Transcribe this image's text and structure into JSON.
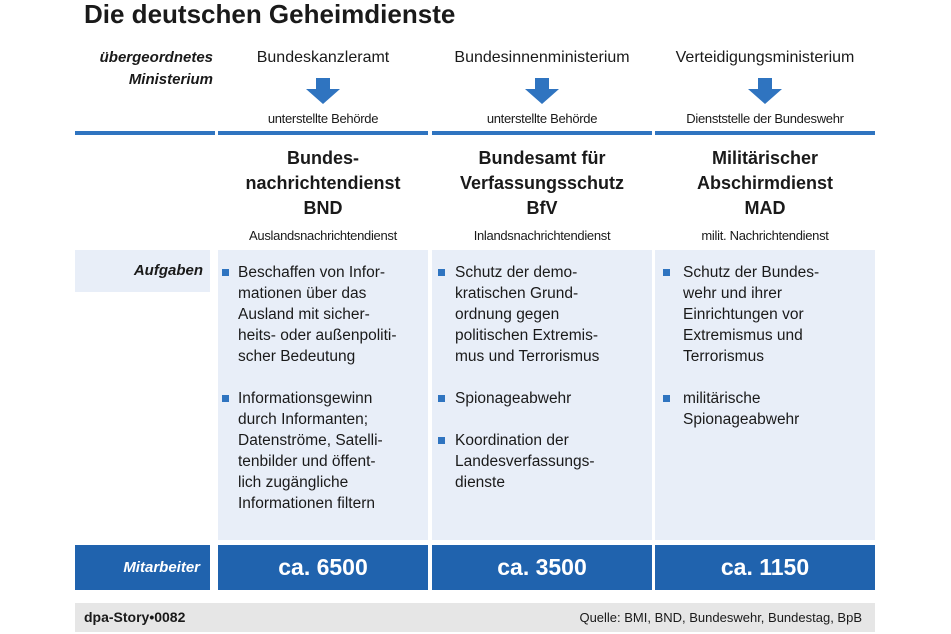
{
  "title": "Die deutschen Geheimdienste",
  "row_labels": {
    "ministry": [
      "übergeordnetes",
      "Ministerium"
    ],
    "tasks": "Aufgaben",
    "staff": "Mitarbeiter"
  },
  "services": [
    {
      "ministry": "Bundeskanzleramt",
      "relation": "unterstellte Behörde",
      "name_lines": [
        "Bundes-",
        "nachrichtendienst",
        "BND"
      ],
      "type": "Auslandsnachrichtendienst",
      "tasks": [
        {
          "lines": [
            "Beschaffen von Infor-",
            "mationen über das",
            "Ausland mit sicher-",
            "heits- oder außenpoliti-",
            "scher Bedeutung"
          ]
        },
        {
          "lines": [
            "Informationsgewinn",
            "durch Informanten;",
            "Datenströme, Satelli-",
            "tenbilder und öffent-",
            "lich zugängliche",
            "Informationen filtern"
          ]
        }
      ],
      "staff": "ca. 6500"
    },
    {
      "ministry": "Bundesinnenministerium",
      "relation": "unterstellte Behörde",
      "name_lines": [
        "Bundesamt für",
        "Verfassungsschutz",
        "BfV"
      ],
      "type": "Inlandsnachrichtendienst",
      "tasks": [
        {
          "lines": [
            "Schutz der demo-",
            "kratischen Grund-",
            "ordnung gegen",
            "politischen Extremis-",
            "mus und Terrorismus"
          ]
        },
        {
          "lines": [
            "Spionageabwehr"
          ]
        },
        {
          "lines": [
            "Koordination der",
            "Landesverfassungs-",
            "dienste"
          ]
        }
      ],
      "staff": "ca. 3500"
    },
    {
      "ministry": "Verteidigungsministerium",
      "relation": "Dienststelle der Bundeswehr",
      "name_lines": [
        "Militärischer",
        "Abschirmdienst",
        "MAD"
      ],
      "type": "milit. Nachrichtendienst",
      "tasks": [
        {
          "lines": [
            "Schutz der Bundes-",
            "wehr und ihrer",
            "Einrichtungen vor",
            "Extremismus und",
            "Terrorismus"
          ]
        },
        {
          "lines": [
            "militärische",
            "Spionageabwehr"
          ]
        }
      ],
      "staff": "ca. 1150"
    }
  ],
  "footer": {
    "story": "dpa-Story•0082",
    "source": "Quelle: BMI, BND, Bundeswehr, Bundestag, BpB"
  },
  "icons": {
    "arrow": "down-arrow-icon",
    "bullet": "square-bullet-icon"
  },
  "colors": {
    "accent": "#2f74c0",
    "band": "#2063ae",
    "panel": "#e8eef8",
    "footer": "#e6e6e6"
  }
}
